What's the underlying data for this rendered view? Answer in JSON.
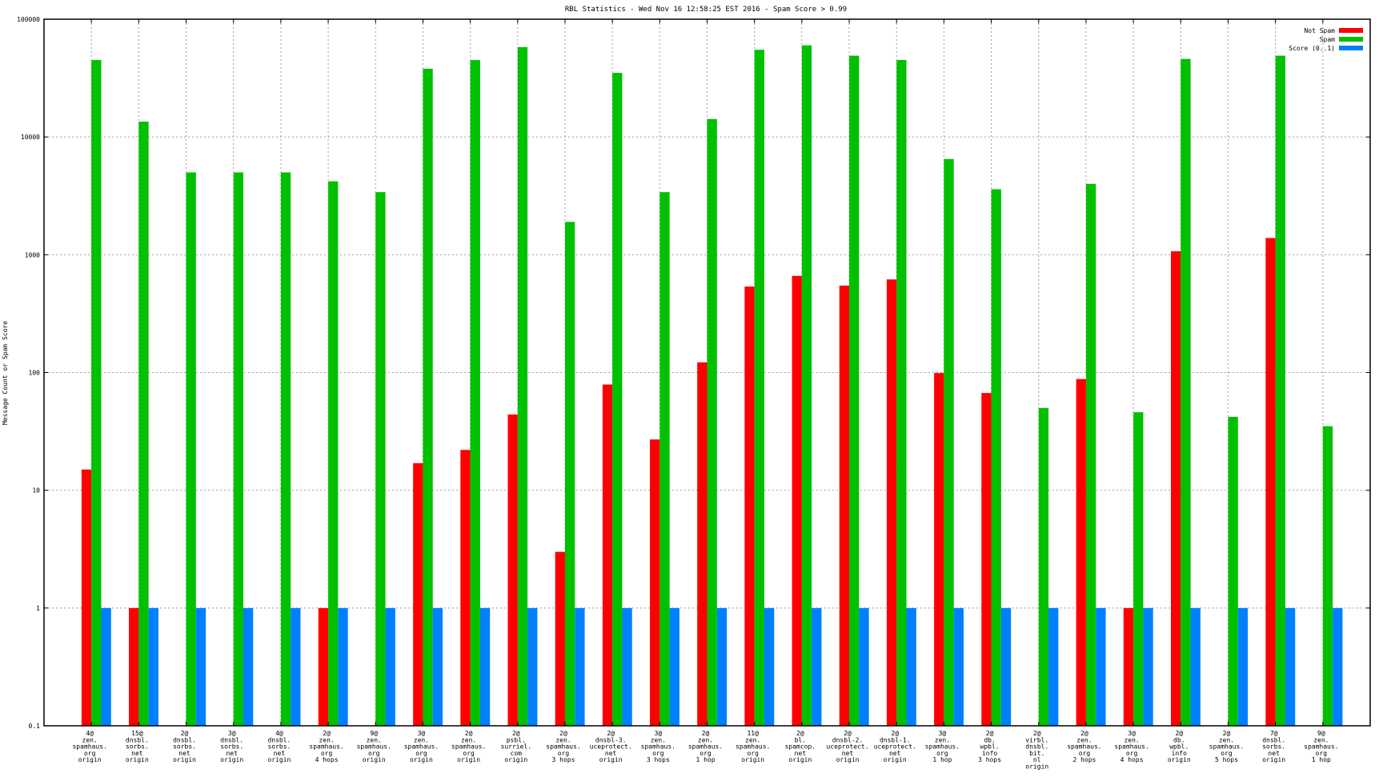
{
  "chart_data": {
    "type": "bar",
    "title": "RBL Statistics - Wed Nov 16 12:58:25 EST 2016 - Spam Score > 0.99",
    "xlabel": "",
    "ylabel": "Message Count or Spam Score",
    "yscale": "log",
    "ylim": [
      0.1,
      100000
    ],
    "yticks": [
      "100000",
      "10000",
      "1000",
      "100",
      "10",
      "1",
      "0.1"
    ],
    "ytick_values": [
      100000,
      10000,
      1000,
      100,
      10,
      1,
      0.1
    ],
    "grid": true,
    "legend_position": "top-right",
    "categories": [
      [
        "4@",
        "zen.",
        "spamhaus.",
        "org",
        "origin"
      ],
      [
        "15@",
        "dnsbl.",
        "sorbs.",
        "net",
        "origin"
      ],
      [
        "2@",
        "dnsbl.",
        "sorbs.",
        "net",
        "origin"
      ],
      [
        "3@",
        "dnsbl.",
        "sorbs.",
        "net",
        "origin"
      ],
      [
        "4@",
        "dnsbl.",
        "sorbs.",
        "net",
        "origin"
      ],
      [
        "2@",
        "zen.",
        "spamhaus.",
        "org",
        "4 hops"
      ],
      [
        "9@",
        "zen.",
        "spamhaus.",
        "org",
        "origin"
      ],
      [
        "3@",
        "zen.",
        "spamhaus.",
        "org",
        "origin"
      ],
      [
        "2@",
        "zen.",
        "spamhaus.",
        "org",
        "origin"
      ],
      [
        "2@",
        "psbl.",
        "surriel.",
        "com",
        "origin"
      ],
      [
        "2@",
        "zen.",
        "spamhaus.",
        "org",
        "3 hops"
      ],
      [
        "2@",
        "dnsbl-3.",
        "uceprotect.",
        "net",
        "origin"
      ],
      [
        "3@",
        "zen.",
        "spamhaus.",
        "org",
        "3 hops"
      ],
      [
        "2@",
        "zen.",
        "spamhaus.",
        "org",
        "1 hop"
      ],
      [
        "11@",
        "zen.",
        "spamhaus.",
        "org",
        "origin"
      ],
      [
        "2@",
        "bl.",
        "spamcop.",
        "net",
        "origin"
      ],
      [
        "2@",
        "dnsbl-2.",
        "uceprotect.",
        "net",
        "origin"
      ],
      [
        "2@",
        "dnsbl-1.",
        "uceprotect.",
        "net",
        "origin"
      ],
      [
        "3@",
        "zen.",
        "spamhaus.",
        "org",
        "1 hop"
      ],
      [
        "2@",
        "db.",
        "wpbl.",
        "info",
        "3 hops"
      ],
      [
        "2@",
        "virbl.",
        "dnsbl.",
        "bit.",
        "nl",
        "origin"
      ],
      [
        "2@",
        "zen.",
        "spamhaus.",
        "org",
        "2 hops"
      ],
      [
        "3@",
        "zen.",
        "spamhaus.",
        "org",
        "4 hops"
      ],
      [
        "2@",
        "db.",
        "wpbl.",
        "info",
        "origin"
      ],
      [
        "2@",
        "zen.",
        "spamhaus.",
        "org",
        "5 hops"
      ],
      [
        "7@",
        "dnsbl.",
        "sorbs.",
        "net",
        "origin"
      ],
      [
        "9@",
        "zen.",
        "spamhaus.",
        "org",
        "1 hop"
      ]
    ],
    "series": [
      {
        "name": "Not Spam",
        "color": "#ff0000",
        "values": [
          15,
          1,
          0,
          0,
          0,
          1,
          0,
          17,
          22,
          44,
          3,
          79,
          27,
          122,
          537,
          661,
          547,
          617,
          99,
          67,
          0,
          88,
          1,
          1070,
          0,
          1387,
          0
        ]
      },
      {
        "name": "Spam",
        "color": "#00c000",
        "values": [
          45000,
          13500,
          5000,
          5000,
          5000,
          4200,
          3400,
          38000,
          45000,
          58000,
          1900,
          35000,
          3400,
          14200,
          55000,
          60000,
          49000,
          45000,
          6500,
          3600,
          50,
          4000,
          46,
          46000,
          42,
          49000,
          35
        ]
      },
      {
        "name": "Score (0..1)",
        "color": "#0080ff",
        "values": [
          1,
          1,
          1,
          1,
          1,
          1,
          1,
          1,
          1,
          1,
          1,
          1,
          1,
          1,
          1,
          1,
          1,
          1,
          1,
          1,
          1,
          1,
          1,
          1,
          1,
          1,
          1
        ]
      }
    ]
  }
}
